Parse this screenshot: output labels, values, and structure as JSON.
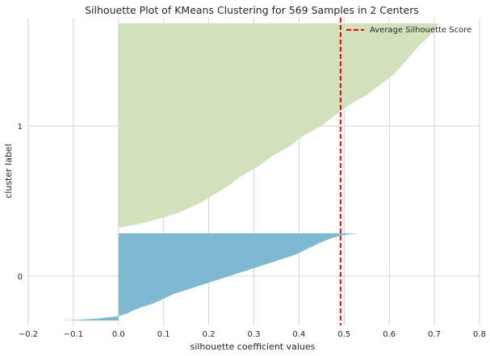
{
  "chart_data": {
    "type": "area",
    "title": "Silhouette Plot of KMeans Clustering for 569 Samples in 2 Centers",
    "xlabel": "silhouette coefficient values",
    "ylabel": "cluster label",
    "xlim": [
      -0.2,
      0.8
    ],
    "xticks": [
      -0.2,
      -0.1,
      0.0,
      0.1,
      0.2,
      0.3,
      0.4,
      0.5,
      0.6,
      0.7,
      0.8
    ],
    "xtick_labels": [
      "−0.2",
      "−0.1",
      "0.0",
      "0.1",
      "0.2",
      "0.3",
      "0.4",
      "0.5",
      "0.6",
      "0.7",
      "0.8"
    ],
    "ytick_labels": [
      "0",
      "1"
    ],
    "grid": true,
    "legend_position": "top-right",
    "average_silhouette_score": 0.492,
    "average_line_label": "Average Silhouette Score",
    "average_line_color": "#ff0000",
    "clusters": [
      {
        "label": "0",
        "color": "#7fb8d1",
        "silhouette_profile": [
          [
            0.0,
            -0.13
          ],
          [
            0.005,
            -0.1
          ],
          [
            0.02,
            -0.05
          ],
          [
            0.05,
            0.0
          ],
          [
            0.08,
            0.02
          ],
          [
            0.11,
            0.03
          ],
          [
            0.15,
            0.05
          ],
          [
            0.2,
            0.08
          ],
          [
            0.25,
            0.1
          ],
          [
            0.3,
            0.12
          ],
          [
            0.35,
            0.15
          ],
          [
            0.4,
            0.18
          ],
          [
            0.45,
            0.21
          ],
          [
            0.5,
            0.24
          ],
          [
            0.55,
            0.27
          ],
          [
            0.6,
            0.3
          ],
          [
            0.65,
            0.33
          ],
          [
            0.7,
            0.36
          ],
          [
            0.75,
            0.39
          ],
          [
            0.8,
            0.41
          ],
          [
            0.85,
            0.43
          ],
          [
            0.9,
            0.45
          ],
          [
            0.94,
            0.47
          ],
          [
            0.97,
            0.49
          ],
          [
            0.99,
            0.51
          ],
          [
            1.0,
            0.53
          ]
        ]
      },
      {
        "label": "1",
        "color": "#d0e1bb",
        "silhouette_profile": [
          [
            0.0,
            0.0
          ],
          [
            0.02,
            0.05
          ],
          [
            0.05,
            0.1
          ],
          [
            0.08,
            0.14
          ],
          [
            0.12,
            0.18
          ],
          [
            0.16,
            0.21
          ],
          [
            0.2,
            0.24
          ],
          [
            0.25,
            0.27
          ],
          [
            0.3,
            0.31
          ],
          [
            0.35,
            0.34
          ],
          [
            0.4,
            0.38
          ],
          [
            0.45,
            0.41
          ],
          [
            0.5,
            0.45
          ],
          [
            0.55,
            0.48
          ],
          [
            0.6,
            0.51
          ],
          [
            0.65,
            0.55
          ],
          [
            0.7,
            0.58
          ],
          [
            0.75,
            0.61
          ],
          [
            0.8,
            0.63
          ],
          [
            0.85,
            0.65
          ],
          [
            0.9,
            0.67
          ],
          [
            0.94,
            0.69
          ],
          [
            0.97,
            0.7
          ],
          [
            1.0,
            0.71
          ]
        ]
      }
    ]
  }
}
